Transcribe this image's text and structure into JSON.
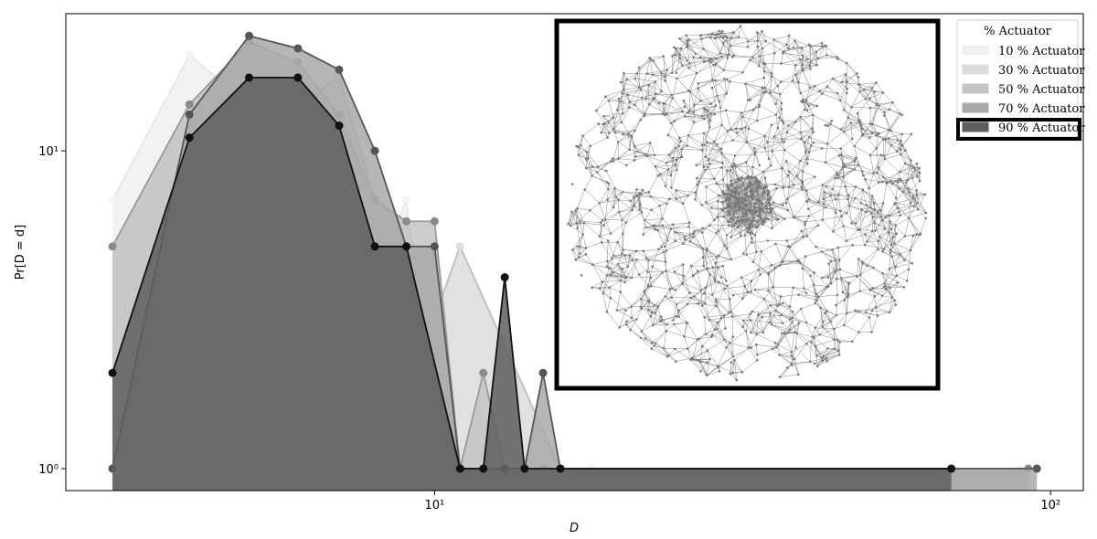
{
  "chart_data": {
    "type": "area-line",
    "xlabel": "D",
    "ylabel": "Pr[D = d]",
    "xscale": "log",
    "yscale": "log",
    "xlim": [
      2.52,
      113
    ],
    "ylim": [
      0.853,
      27
    ],
    "xticks": [
      {
        "value": 10,
        "label": "10¹"
      },
      {
        "value": 100,
        "label": "10²"
      }
    ],
    "yticks": [
      {
        "value": 1,
        "label": "10⁰"
      },
      {
        "value": 10,
        "label": "10¹"
      }
    ],
    "legend_title": "% Actuator",
    "legend_position": "upper right",
    "legend_highlight": 4,
    "series": [
      {
        "name": "10 % Actuator",
        "color": "#f0f0f0",
        "edge_color": "#e6e6e6",
        "marker_color": "#f4f4f4",
        "x": [
          3,
          4,
          5,
          6,
          7,
          8,
          9,
          10,
          11,
          16,
          18,
          89
        ],
        "values": [
          7,
          20,
          14,
          17,
          8,
          4,
          7,
          1,
          1,
          1,
          1,
          1
        ]
      },
      {
        "name": "30 % Actuator",
        "color": "#dcdcdc",
        "edge_color": "#bdbdbd",
        "marker_color": "#dedede",
        "x": [
          3,
          4,
          5,
          6,
          7,
          8,
          9,
          10,
          11,
          16,
          92
        ],
        "values": [
          5,
          14,
          22,
          14,
          17,
          7,
          6,
          3,
          5,
          1,
          1
        ]
      },
      {
        "name": "50 % Actuator",
        "color": "#c4c4c4",
        "edge_color": "#9a9a9a",
        "marker_color": "#8a8a8a",
        "x": [
          3,
          4,
          5,
          6,
          7,
          8,
          9,
          10,
          11,
          12,
          13,
          15,
          16,
          92
        ],
        "values": [
          5,
          14,
          22,
          19,
          13,
          7,
          6,
          6,
          1,
          2,
          1,
          1,
          1,
          1
        ]
      },
      {
        "name": "70 % Actuator",
        "color": "#a9a9a9",
        "edge_color": "#555555",
        "marker_color": "#555555",
        "x": [
          3,
          4,
          5,
          6,
          7,
          8,
          9,
          10,
          11,
          13,
          14,
          15,
          16,
          95
        ],
        "values": [
          1,
          13,
          23,
          21,
          18,
          10,
          5,
          5,
          1,
          1,
          1,
          2,
          1,
          1
        ]
      },
      {
        "name": "90 % Actuator",
        "color": "#5e5e5e",
        "edge_color": "#111111",
        "marker_color": "#111111",
        "x": [
          3,
          4,
          5,
          6,
          7,
          8,
          9,
          11,
          12,
          13,
          14,
          16,
          69
        ],
        "values": [
          2,
          11,
          17,
          17,
          12,
          5,
          5,
          1,
          1,
          4,
          1,
          1,
          1
        ]
      }
    ]
  }
}
